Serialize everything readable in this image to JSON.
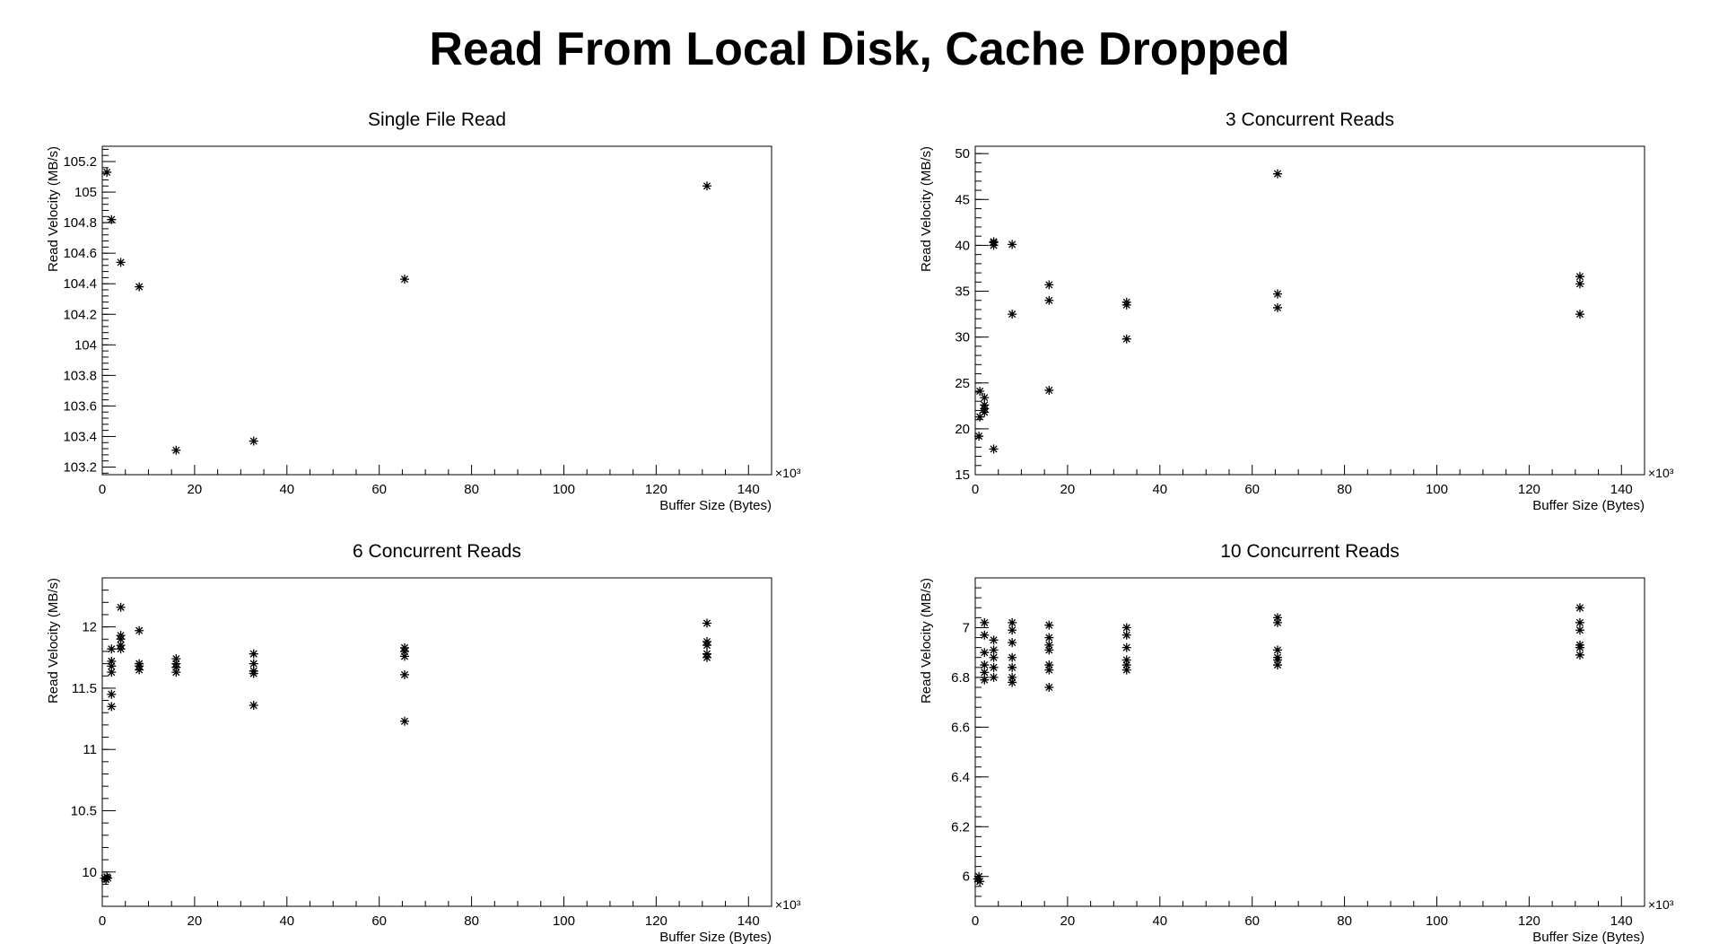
{
  "title": "Read From Local Disk, Cache Dropped",
  "chart_data": [
    {
      "type": "scatter",
      "title": "Single File Read",
      "xlabel": "Buffer Size (Bytes)",
      "ylabel": "Read Velocity (MB/s)",
      "x_multiplier_label": "×10³",
      "xlim": [
        0,
        145
      ],
      "ylim": [
        103.15,
        105.3
      ],
      "xticks": [
        0,
        20,
        40,
        60,
        80,
        100,
        120,
        140
      ],
      "yticks": [
        103.2,
        103.4,
        103.6,
        103.8,
        104,
        104.2,
        104.4,
        104.6,
        104.8,
        105,
        105.2
      ],
      "points": [
        [
          1,
          105.13
        ],
        [
          2,
          104.82
        ],
        [
          4,
          104.54
        ],
        [
          8,
          104.38
        ],
        [
          16,
          103.31
        ],
        [
          32.8,
          103.37
        ],
        [
          65.5,
          104.43
        ],
        [
          131,
          105.04
        ]
      ]
    },
    {
      "type": "scatter",
      "title": "3 Concurrent Reads",
      "xlabel": "Buffer Size (Bytes)",
      "ylabel": "Read Velocity (MB/s)",
      "x_multiplier_label": "×10³",
      "xlim": [
        0,
        145
      ],
      "ylim": [
        15,
        50.8
      ],
      "xticks": [
        0,
        20,
        40,
        60,
        80,
        100,
        120,
        140
      ],
      "yticks": [
        15,
        20,
        25,
        30,
        35,
        40,
        45,
        50
      ],
      "points": [
        [
          0.8,
          19.2
        ],
        [
          1,
          21.3
        ],
        [
          1,
          24.1
        ],
        [
          2,
          21.8
        ],
        [
          2,
          22.2
        ],
        [
          2,
          23.4
        ],
        [
          2,
          22.6
        ],
        [
          4,
          17.8
        ],
        [
          4,
          40.0
        ],
        [
          4,
          40.3
        ],
        [
          4,
          40.4
        ],
        [
          8,
          32.5
        ],
        [
          8,
          40.1
        ],
        [
          16,
          24.2
        ],
        [
          16,
          34.0
        ],
        [
          16,
          35.7
        ],
        [
          32.8,
          29.8
        ],
        [
          32.8,
          33.5
        ],
        [
          32.8,
          33.8
        ],
        [
          65.5,
          47.8
        ],
        [
          65.5,
          33.2
        ],
        [
          65.5,
          34.7
        ],
        [
          131,
          32.5
        ],
        [
          131,
          35.8
        ],
        [
          131,
          36.6
        ]
      ]
    },
    {
      "type": "scatter",
      "title": "6 Concurrent Reads",
      "xlabel": "Buffer Size (Bytes)",
      "ylabel": "Read Velocity (MB/s)",
      "x_multiplier_label": "×10³",
      "xlim": [
        0,
        145
      ],
      "ylim": [
        9.72,
        12.4
      ],
      "xticks": [
        0,
        20,
        40,
        60,
        80,
        100,
        120,
        140
      ],
      "yticks": [
        10,
        10.5,
        11,
        11.5,
        12
      ],
      "points": [
        [
          0.5,
          9.95
        ],
        [
          0.8,
          9.94
        ],
        [
          1,
          9.96
        ],
        [
          1.2,
          9.95
        ],
        [
          2,
          11.35
        ],
        [
          2,
          11.45
        ],
        [
          2,
          11.63
        ],
        [
          2,
          11.68
        ],
        [
          2,
          11.72
        ],
        [
          2,
          11.82
        ],
        [
          4,
          11.82
        ],
        [
          4,
          11.85
        ],
        [
          4,
          11.9
        ],
        [
          4,
          11.93
        ],
        [
          4,
          12.16
        ],
        [
          8,
          11.65
        ],
        [
          8,
          11.68
        ],
        [
          8,
          11.7
        ],
        [
          8,
          11.97
        ],
        [
          16,
          11.63
        ],
        [
          16,
          11.67
        ],
        [
          16,
          11.7
        ],
        [
          16,
          11.74
        ],
        [
          32.8,
          11.36
        ],
        [
          32.8,
          11.62
        ],
        [
          32.8,
          11.64
        ],
        [
          32.8,
          11.7
        ],
        [
          32.8,
          11.78
        ],
        [
          65.5,
          11.23
        ],
        [
          65.5,
          11.61
        ],
        [
          65.5,
          11.76
        ],
        [
          65.5,
          11.8
        ],
        [
          65.5,
          11.83
        ],
        [
          131,
          11.75
        ],
        [
          131,
          11.78
        ],
        [
          131,
          11.85
        ],
        [
          131,
          11.88
        ],
        [
          131,
          12.03
        ]
      ]
    },
    {
      "type": "scatter",
      "title": "10 Concurrent Reads",
      "xlabel": "Buffer Size (Bytes)",
      "ylabel": "Read Velocity (MB/s)",
      "x_multiplier_label": "×10³",
      "xlim": [
        0,
        145
      ],
      "ylim": [
        5.88,
        7.2
      ],
      "xticks": [
        0,
        20,
        40,
        60,
        80,
        100,
        120,
        140
      ],
      "yticks": [
        6,
        6.2,
        6.4,
        6.6,
        6.8,
        7
      ],
      "points": [
        [
          0.5,
          5.99
        ],
        [
          0.8,
          6.0
        ],
        [
          1,
          5.98
        ],
        [
          2,
          6.79
        ],
        [
          2,
          6.82
        ],
        [
          2,
          6.85
        ],
        [
          2,
          6.9
        ],
        [
          2,
          6.97
        ],
        [
          2,
          7.02
        ],
        [
          4,
          6.8
        ],
        [
          4,
          6.84
        ],
        [
          4,
          6.88
        ],
        [
          4,
          6.91
        ],
        [
          4,
          6.95
        ],
        [
          8,
          6.78
        ],
        [
          8,
          6.8
        ],
        [
          8,
          6.84
        ],
        [
          8,
          6.88
        ],
        [
          8,
          6.94
        ],
        [
          8,
          6.99
        ],
        [
          8,
          7.02
        ],
        [
          16,
          6.76
        ],
        [
          16,
          6.83
        ],
        [
          16,
          6.85
        ],
        [
          16,
          6.91
        ],
        [
          16,
          6.93
        ],
        [
          16,
          6.96
        ],
        [
          16,
          7.01
        ],
        [
          32.8,
          6.83
        ],
        [
          32.8,
          6.85
        ],
        [
          32.8,
          6.87
        ],
        [
          32.8,
          6.92
        ],
        [
          32.8,
          6.97
        ],
        [
          32.8,
          7.0
        ],
        [
          65.5,
          6.85
        ],
        [
          65.5,
          6.87
        ],
        [
          65.5,
          6.88
        ],
        [
          65.5,
          6.91
        ],
        [
          65.5,
          7.02
        ],
        [
          65.5,
          7.04
        ],
        [
          131,
          6.89
        ],
        [
          131,
          6.92
        ],
        [
          131,
          6.93
        ],
        [
          131,
          6.99
        ],
        [
          131,
          7.02
        ],
        [
          131,
          7.08
        ]
      ]
    }
  ]
}
